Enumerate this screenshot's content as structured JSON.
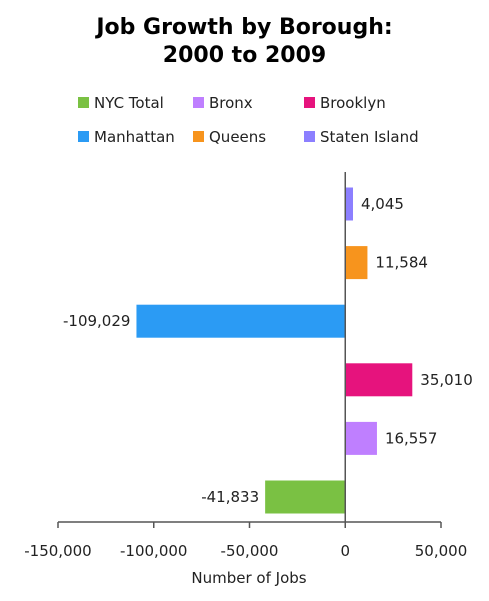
{
  "chart_data": {
    "type": "bar",
    "orientation": "horizontal",
    "title": [
      "Job Growth by Borough:",
      "2000 to 2009"
    ],
    "xlabel": "Number of Jobs",
    "ylabel": "",
    "xlim": [
      -150000,
      50000
    ],
    "xticks": [
      -150000,
      -100000,
      -50000,
      0,
      50000
    ],
    "xtick_labels": [
      "-150,000",
      "-100,000",
      "-50,000",
      "0",
      "50,000"
    ],
    "grid": false,
    "legend_position": "top",
    "categories": [
      "NYC Total",
      "Bronx",
      "Brooklyn",
      "Manhattan",
      "Queens",
      "Staten Island"
    ],
    "values": [
      -41833,
      16557,
      35010,
      -109029,
      11584,
      4045
    ],
    "value_labels": [
      "-41,833",
      "16,557",
      "35,010",
      "-109,029",
      "11,584",
      "4,045"
    ],
    "colors": [
      "#7ac143",
      "#bf7fff",
      "#e6137d",
      "#2b9bf4",
      "#f7941d",
      "#8c7fff"
    ]
  }
}
